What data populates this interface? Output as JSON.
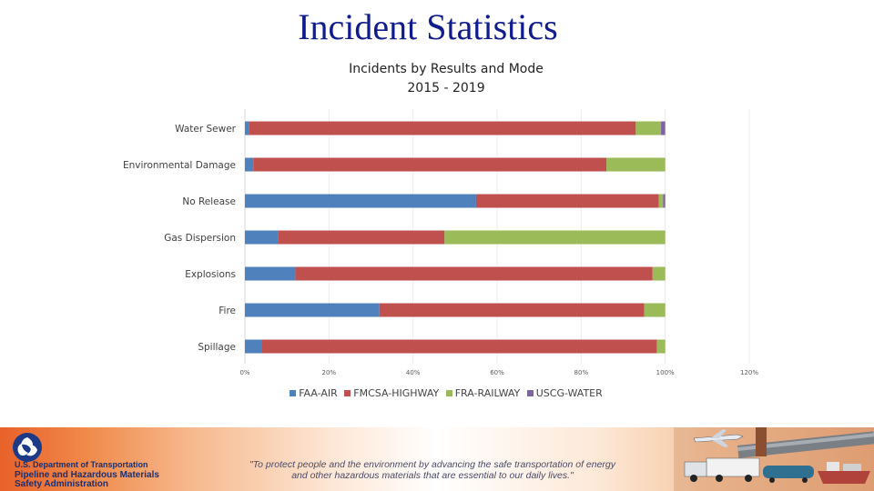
{
  "slide": {
    "title": "Incident Statistics"
  },
  "footer": {
    "org_line": "U.S. Department of Transportation",
    "agency_lines": [
      "Pipeline and Hazardous Materials",
      "Safety Administration"
    ],
    "quote_lines": [
      "\"To protect people and the environment by advancing the safe transportation of energy",
      "and other hazardous materials that are essential to our daily lives.\""
    ]
  },
  "colors": {
    "FAA-AIR": "#4f81bd",
    "FMCSA-HIGHWAY": "#c0504d",
    "FRA-RAILWAY": "#9bbb59",
    "USCG-WATER": "#8064a2"
  },
  "chart_data": {
    "type": "bar",
    "orientation": "horizontal",
    "stacked": true,
    "title_lines": [
      "Incidents by Results and Mode",
      "2015 - 2019"
    ],
    "categories": [
      "Water Sewer",
      "Environmental Damage",
      "No Release",
      "Gas Dispersion",
      "Explosions",
      "Fire",
      "Spillage"
    ],
    "series": [
      {
        "name": "FAA-AIR",
        "values": [
          1,
          2,
          55,
          8,
          12,
          32,
          4
        ]
      },
      {
        "name": "FMCSA-HIGHWAY",
        "values": [
          92,
          84,
          43.5,
          39.5,
          85,
          63,
          94
        ]
      },
      {
        "name": "FRA-RAILWAY",
        "values": [
          6,
          14,
          1,
          52.5,
          3,
          5,
          2
        ]
      },
      {
        "name": "USCG-WATER",
        "values": [
          1,
          0,
          0.5,
          0,
          0,
          0,
          0
        ]
      }
    ],
    "xlim": [
      0,
      120
    ],
    "xticks": [
      "0%",
      "20%",
      "40%",
      "60%",
      "80%",
      "100%",
      "120%"
    ],
    "xlabel": "",
    "ylabel": "",
    "legend": "bottom"
  }
}
